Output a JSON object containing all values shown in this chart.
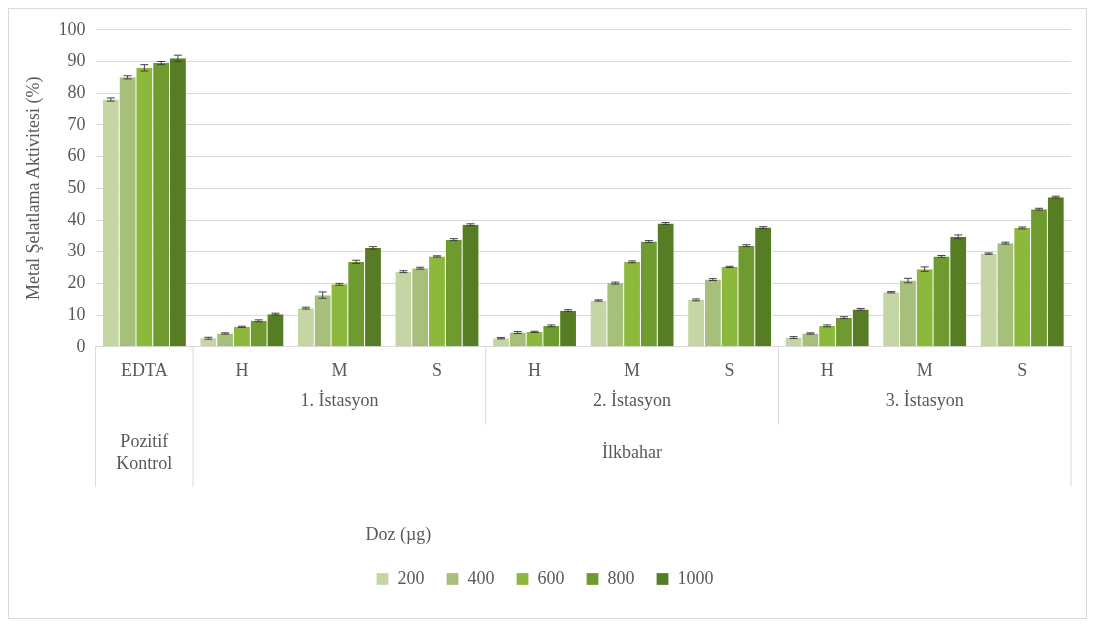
{
  "chart_data": {
    "type": "bar",
    "ylabel": "Metal Şelatlama Aktivitesi (%)",
    "legend_title": "Doz (µg)",
    "legend": "bottom",
    "grid": "y",
    "categories": [
      "EDTA",
      "H",
      "M",
      "S",
      "H",
      "M",
      "S",
      "H",
      "M",
      "S"
    ],
    "annotations": [
      "1. İstasyon",
      "2. İstasyon",
      "3. İstasyon",
      "Pozitif Kontrol",
      "İlkbahar"
    ],
    "ylim": [
      0,
      100
    ],
    "yticks": [
      0,
      10,
      20,
      30,
      40,
      50,
      60,
      70,
      80,
      90,
      100
    ],
    "series": [
      {
        "name": "200",
        "color": "#c5d6a4",
        "values": [
          78,
          2.7,
          12.2,
          23.7,
          2.7,
          14.6,
          14.8,
          2.9,
          17.2,
          29.4
        ],
        "errors": [
          0.5,
          0.3,
          0.3,
          0.3,
          0.2,
          0.2,
          0.3,
          0.3,
          0.2,
          0.2
        ]
      },
      {
        "name": "400",
        "color": "#a6bf7a",
        "values": [
          85,
          4.2,
          16.3,
          24.8,
          4.5,
          20.1,
          21.2,
          4.2,
          20.9,
          32.7
        ],
        "errors": [
          0.5,
          0.2,
          1,
          0.3,
          0.3,
          0.3,
          0.3,
          0.2,
          0.7,
          0.3
        ]
      },
      {
        "name": "600",
        "color": "#8cb83c",
        "values": [
          88,
          6.3,
          19.7,
          28.5,
          4.7,
          26.8,
          25.2,
          6.6,
          24.5,
          37.5
        ],
        "errors": [
          1,
          0.2,
          0.3,
          0.2,
          0.2,
          0.3,
          0.2,
          0.3,
          0.7,
          0.3
        ]
      },
      {
        "name": "800",
        "color": "#6f9a2f",
        "values": [
          89.5,
          8.2,
          26.8,
          33.8,
          6.6,
          33.2,
          31.9,
          9.2,
          28.5,
          43.4
        ],
        "errors": [
          0.5,
          0.3,
          0.5,
          0.3,
          0.3,
          0.3,
          0.3,
          0.3,
          0.3,
          0.3
        ]
      },
      {
        "name": "1000",
        "color": "#567c24",
        "values": [
          91,
          10.3,
          31.2,
          38.5,
          11.4,
          38.9,
          37.6,
          11.8,
          34.7,
          47.2
        ],
        "errors": [
          1,
          0.3,
          0.4,
          0.3,
          0.3,
          0.3,
          0.3,
          0.3,
          0.6,
          0.3
        ]
      }
    ]
  }
}
